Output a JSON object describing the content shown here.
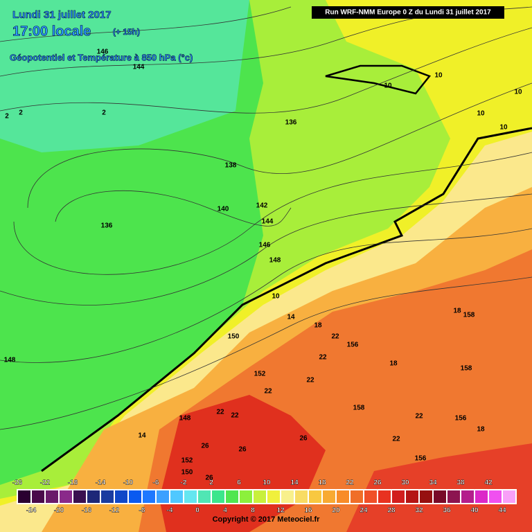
{
  "header": {
    "date": "Lundi 31 juillet 2017",
    "time": "17:00 locale",
    "offset": "(+ 15h)",
    "field": "Géopotentiel et Température à 850 hPa (°c)",
    "run": "Run WRF-NMM Europe 0 Z du Lundi 31 juillet 2017"
  },
  "map_labels": [
    "146",
    "144",
    "2",
    "2",
    "2",
    "136",
    "10",
    "10",
    "10",
    "10",
    "10",
    "138",
    "140",
    "142",
    "136",
    "144",
    "146",
    "148",
    "10",
    "14",
    "18",
    "150",
    "22",
    "156",
    "148",
    "18",
    "158",
    "18",
    "158",
    "22",
    "152",
    "22",
    "22",
    "22",
    "22",
    "158",
    "22",
    "156",
    "18",
    "148",
    "14",
    "26",
    "26",
    "26",
    "22",
    "156",
    "152",
    "150",
    "26"
  ],
  "legend": {
    "top_labels": [
      "-26",
      "-22",
      "-18",
      "-14",
      "-10",
      "-6",
      "-2",
      "2",
      "6",
      "10",
      "14",
      "18",
      "22",
      "26",
      "30",
      "34",
      "38",
      "42"
    ],
    "bottom_labels": [
      "-24",
      "-20",
      "-16",
      "-12",
      "-8",
      "-4",
      "0",
      "4",
      "8",
      "12",
      "16",
      "20",
      "24",
      "28",
      "32",
      "36",
      "40",
      "44"
    ],
    "colors": [
      "#2a0030",
      "#4a0a4a",
      "#6a1a6a",
      "#8a2a8a",
      "#3a1050",
      "#1e2878",
      "#1a3ca0",
      "#1048c8",
      "#0a5af0",
      "#1e78ff",
      "#3ca0ff",
      "#50c8ff",
      "#64e6f0",
      "#50e6b4",
      "#3ce68c",
      "#50e650",
      "#8cf03c",
      "#c8f03c",
      "#f0f03c",
      "#f8f08c",
      "#f8dc64",
      "#f8c840",
      "#f8aa32",
      "#f88c28",
      "#f06e28",
      "#f05028",
      "#e83220",
      "#d21e1e",
      "#b41414",
      "#961010",
      "#780a28",
      "#8c1450",
      "#b41e8c",
      "#dc28c8",
      "#f050f0",
      "#f8a0f8"
    ]
  },
  "footer": {
    "copyright": "Copyright © 2017 Meteociel.fr"
  }
}
